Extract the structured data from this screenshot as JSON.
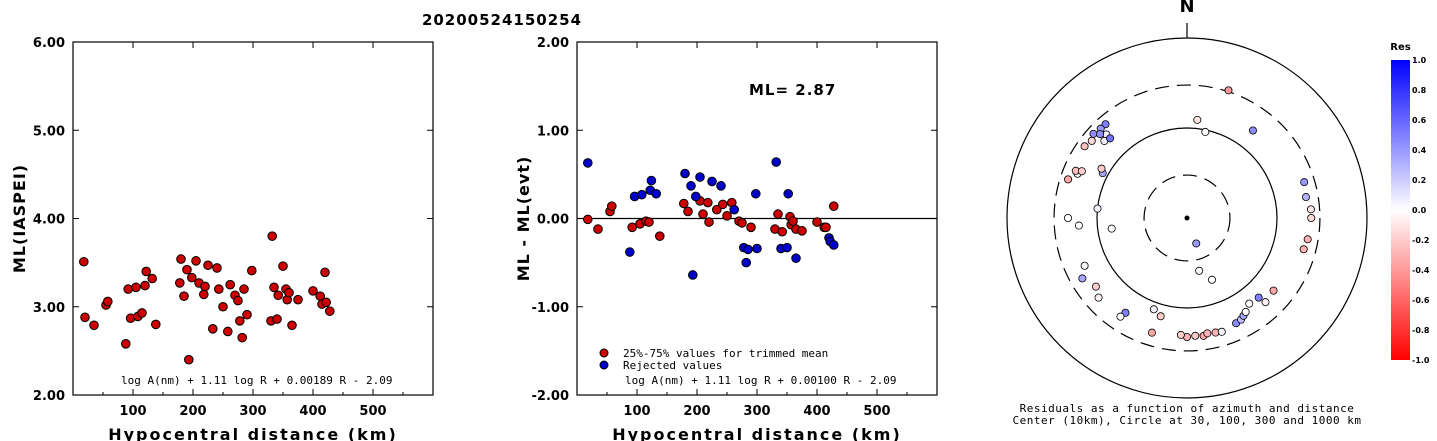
{
  "title": "20200524150254",
  "chart_data": [
    {
      "type": "scatter",
      "xlabel": "Hypocentral distance (km)",
      "ylabel": "ML(IASPEI)",
      "xlim": [
        0,
        600
      ],
      "ylim": [
        2.0,
        6.0
      ],
      "xticks": [
        "100",
        "200",
        "300",
        "400",
        "500"
      ],
      "xtick_values": [
        100,
        200,
        300,
        400,
        500
      ],
      "yticks": [
        "2.00",
        "3.00",
        "4.00",
        "5.00",
        "6.00"
      ],
      "ytick_values": [
        2,
        3,
        4,
        5,
        6
      ],
      "formula": "log A(nm) + 1.11 log R + 0.00189 R - 2.09",
      "color": "#cc0000",
      "points": [
        [
          18,
          3.51
        ],
        [
          20,
          2.88
        ],
        [
          35,
          2.79
        ],
        [
          55,
          3.02
        ],
        [
          58,
          3.06
        ],
        [
          88,
          2.58
        ],
        [
          92,
          3.2
        ],
        [
          96,
          2.87
        ],
        [
          105,
          3.22
        ],
        [
          108,
          2.89
        ],
        [
          115,
          2.93
        ],
        [
          120,
          3.24
        ],
        [
          122,
          3.4
        ],
        [
          132,
          3.32
        ],
        [
          138,
          2.8
        ],
        [
          178,
          3.27
        ],
        [
          180,
          3.54
        ],
        [
          185,
          3.12
        ],
        [
          190,
          3.42
        ],
        [
          193,
          2.4
        ],
        [
          198,
          3.33
        ],
        [
          205,
          3.52
        ],
        [
          210,
          3.27
        ],
        [
          218,
          3.14
        ],
        [
          220,
          3.23
        ],
        [
          225,
          3.47
        ],
        [
          233,
          2.75
        ],
        [
          240,
          3.44
        ],
        [
          243,
          3.2
        ],
        [
          250,
          3.0
        ],
        [
          258,
          2.72
        ],
        [
          262,
          3.25
        ],
        [
          270,
          3.13
        ],
        [
          275,
          3.07
        ],
        [
          278,
          2.84
        ],
        [
          282,
          2.65
        ],
        [
          285,
          3.2
        ],
        [
          290,
          2.91
        ],
        [
          298,
          3.41
        ],
        [
          330,
          2.84
        ],
        [
          332,
          3.8
        ],
        [
          335,
          3.22
        ],
        [
          340,
          2.86
        ],
        [
          342,
          3.13
        ],
        [
          350,
          3.46
        ],
        [
          355,
          3.2
        ],
        [
          357,
          3.08
        ],
        [
          360,
          3.16
        ],
        [
          365,
          2.79
        ],
        [
          375,
          3.08
        ],
        [
          400,
          3.18
        ],
        [
          412,
          3.12
        ],
        [
          415,
          3.03
        ],
        [
          420,
          3.39
        ],
        [
          422,
          3.05
        ],
        [
          428,
          2.95
        ]
      ]
    },
    {
      "type": "scatter",
      "xlabel": "Hypocentral distance (km)",
      "ylabel": "ML - ML(evt)",
      "xlim": [
        0,
        600
      ],
      "ylim": [
        -2.0,
        2.0
      ],
      "xticks": [
        "100",
        "200",
        "300",
        "400",
        "500"
      ],
      "xtick_values": [
        100,
        200,
        300,
        400,
        500
      ],
      "yticks": [
        "-2.00",
        "-1.00",
        "0.00",
        "1.00",
        "2.00"
      ],
      "ytick_values": [
        -2,
        -1,
        0,
        1,
        2
      ],
      "annotation": "ML= 2.87",
      "zero_line": 0,
      "formula": "log A(nm) + 1.11 log R + 0.00100 R - 2.09",
      "series": [
        {
          "name": "25%-75% values for trimmed mean",
          "color": "#cc0000",
          "points": [
            [
              18,
              -0.01
            ],
            [
              35,
              -0.12
            ],
            [
              55,
              0.08
            ],
            [
              58,
              0.14
            ],
            [
              92,
              -0.1
            ],
            [
              105,
              -0.06
            ],
            [
              115,
              -0.03
            ],
            [
              120,
              -0.04
            ],
            [
              138,
              -0.2
            ],
            [
              178,
              0.17
            ],
            [
              185,
              0.08
            ],
            [
              205,
              0.2
            ],
            [
              210,
              0.05
            ],
            [
              218,
              0.18
            ],
            [
              220,
              -0.04
            ],
            [
              233,
              0.1
            ],
            [
              243,
              0.16
            ],
            [
              250,
              0.03
            ],
            [
              258,
              0.18
            ],
            [
              270,
              -0.03
            ],
            [
              275,
              -0.05
            ],
            [
              290,
              -0.1
            ],
            [
              330,
              -0.12
            ],
            [
              335,
              0.05
            ],
            [
              342,
              -0.15
            ],
            [
              355,
              0.02
            ],
            [
              357,
              -0.07
            ],
            [
              360,
              -0.03
            ],
            [
              365,
              -0.12
            ],
            [
              375,
              -0.14
            ],
            [
              400,
              -0.04
            ],
            [
              412,
              -0.1
            ],
            [
              415,
              -0.1
            ],
            [
              428,
              0.14
            ]
          ]
        },
        {
          "name": "Rejected values",
          "color": "#0000cc",
          "points": [
            [
              18,
              0.63
            ],
            [
              88,
              -0.38
            ],
            [
              96,
              0.25
            ],
            [
              108,
              0.27
            ],
            [
              122,
              0.32
            ],
            [
              124,
              0.43
            ],
            [
              132,
              0.28
            ],
            [
              180,
              0.51
            ],
            [
              190,
              0.37
            ],
            [
              193,
              -0.64
            ],
            [
              198,
              0.25
            ],
            [
              205,
              0.47
            ],
            [
              225,
              0.42
            ],
            [
              240,
              0.37
            ],
            [
              262,
              0.1
            ],
            [
              278,
              -0.33
            ],
            [
              282,
              -0.5
            ],
            [
              285,
              -0.35
            ],
            [
              298,
              0.28
            ],
            [
              300,
              -0.34
            ],
            [
              332,
              0.64
            ],
            [
              340,
              -0.34
            ],
            [
              350,
              -0.33
            ],
            [
              352,
              0.28
            ],
            [
              365,
              -0.45
            ],
            [
              420,
              -0.22
            ],
            [
              422,
              -0.26
            ],
            [
              428,
              -0.3
            ]
          ]
        }
      ]
    },
    {
      "type": "polar-scatter",
      "north_label": "N",
      "caption_line1": "Residuals as a function of azimuth and distance",
      "caption_line2": "Center (10km), Circle at 30, 100, 300 and 1000 km",
      "circles_km": [
        30,
        100,
        300,
        1000
      ],
      "colorbar": {
        "title": "Res",
        "ticks": [
          "1.0",
          "0.8",
          "0.6",
          "0.4",
          "0.2",
          "0.0",
          "-0.2",
          "-0.4",
          "-0.6",
          "-0.8",
          "-1.0"
        ],
        "tick_values": [
          1.0,
          0.8,
          0.6,
          0.4,
          0.2,
          0.0,
          -0.2,
          -0.4,
          -0.6,
          -0.8,
          -1.0
        ],
        "colors": [
          "#0000ff",
          "#ffffff",
          "#ff0000"
        ]
      },
      "points": [
        [
          298,
          115,
          0.35
        ],
        [
          305,
          245,
          -0.25
        ],
        [
          309,
          230,
          -0.15
        ],
        [
          312,
          250,
          0.45
        ],
        [
          316,
          195,
          0.05
        ],
        [
          313,
          180,
          0.05
        ],
        [
          316,
          170,
          0.55
        ],
        [
          319,
          240,
          0.5
        ],
        [
          316,
          240,
          0.4
        ],
        [
          314,
          220,
          0.45
        ],
        [
          300,
          125,
          -0.2
        ],
        [
          292,
          205,
          0.05
        ],
        [
          293,
          220,
          -0.25
        ],
        [
          288,
          245,
          -0.35
        ],
        [
          294,
          190,
          -0.2
        ],
        [
          12,
          95,
          0.0
        ],
        [
          18,
          310,
          -0.4
        ],
        [
          6,
          125,
          -0.1
        ],
        [
          37,
          165,
          0.45
        ],
        [
          73,
          230,
          0.4
        ],
        [
          90,
          240,
          -0.15
        ],
        [
          86,
          240,
          -0.1
        ],
        [
          80,
          220,
          0.3
        ],
        [
          100,
          230,
          -0.3
        ],
        [
          105,
          220,
          -0.3
        ],
        [
          270,
          210,
          0.0
        ],
        [
          266,
          160,
          0.0
        ],
        [
          276,
          100,
          0.05
        ],
        [
          262,
          70,
          0.0
        ],
        [
          160,
          20,
          0.4
        ],
        [
          158,
          55,
          0.0
        ],
        [
          167,
          40,
          0.0
        ],
        [
          240,
          220,
          0.35
        ],
        [
          245,
          180,
          0.0
        ],
        [
          233,
          185,
          -0.2
        ],
        [
          228,
          210,
          -0.05
        ],
        [
          213,
          180,
          0.5
        ],
        [
          200,
          120,
          0.05
        ],
        [
          214,
          210,
          0.0
        ],
        [
          195,
          135,
          -0.2
        ],
        [
          166,
          205,
          -0.3
        ],
        [
          172,
          210,
          -0.35
        ],
        [
          176,
          205,
          -0.2
        ],
        [
          170,
          200,
          -0.3
        ],
        [
          180,
          210,
          -0.3
        ],
        [
          183,
          200,
          -0.2
        ],
        [
          163,
          210,
          0.05
        ],
        [
          155,
          195,
          0.45
        ],
        [
          152,
          190,
          0.25
        ],
        [
          150,
          180,
          0.35
        ],
        [
          148,
          170,
          0.0
        ],
        [
          137,
          190,
          -0.05
        ],
        [
          144,
          150,
          0.0
        ],
        [
          130,
          180,
          -0.35
        ],
        [
          138,
          155,
          0.5
        ],
        [
          197,
          215,
          -0.35
        ]
      ]
    }
  ]
}
